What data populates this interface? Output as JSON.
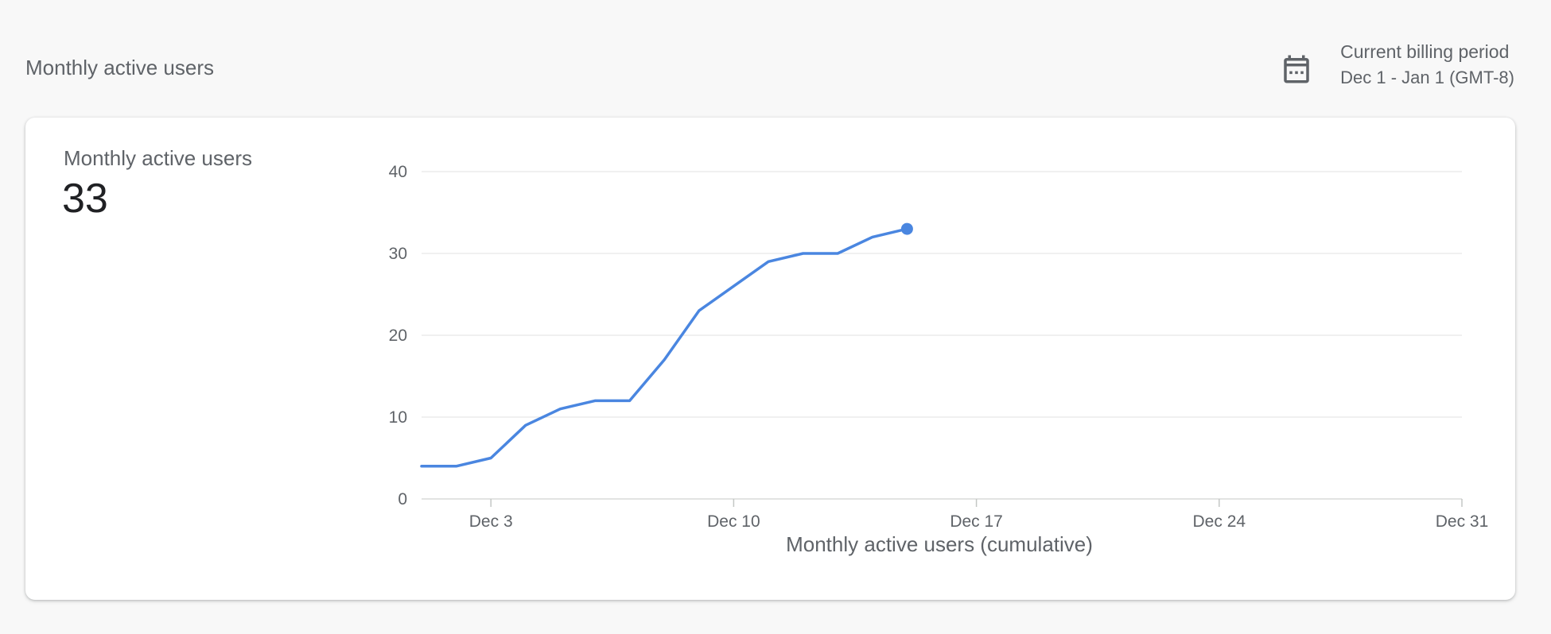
{
  "header": {
    "title": "Monthly active users",
    "billing_label": "Current billing period",
    "billing_period": "Dec 1 - Jan 1 (GMT-8)",
    "calendar_icon": "calendar-icon"
  },
  "card": {
    "metric_label": "Monthly active users",
    "metric_value": "33"
  },
  "colors": {
    "line": "#4a86e0",
    "grid": "#e0e0e0",
    "axis": "#c4c7c5"
  },
  "chart_data": {
    "type": "line",
    "title": "",
    "xlabel": "Monthly active users (cumulative)",
    "ylabel": "",
    "x_unit": "date (December day)",
    "xlim": [
      1,
      31
    ],
    "ylim": [
      0,
      40
    ],
    "yticks": [
      0,
      10,
      20,
      30,
      40
    ],
    "xticks": [
      {
        "value": 3,
        "label": "Dec 3"
      },
      {
        "value": 10,
        "label": "Dec 10"
      },
      {
        "value": 17,
        "label": "Dec 17"
      },
      {
        "value": 24,
        "label": "Dec 24"
      },
      {
        "value": 31,
        "label": "Dec 31"
      }
    ],
    "grid": true,
    "series": [
      {
        "x": [
          1,
          2,
          3,
          4,
          5,
          6,
          7,
          8,
          9,
          10,
          11,
          12,
          13,
          14,
          15
        ],
        "y": [
          4,
          4,
          5,
          9,
          11,
          12,
          12,
          17,
          23,
          26,
          29,
          30,
          30,
          32,
          33
        ],
        "end_marker": true
      }
    ]
  }
}
